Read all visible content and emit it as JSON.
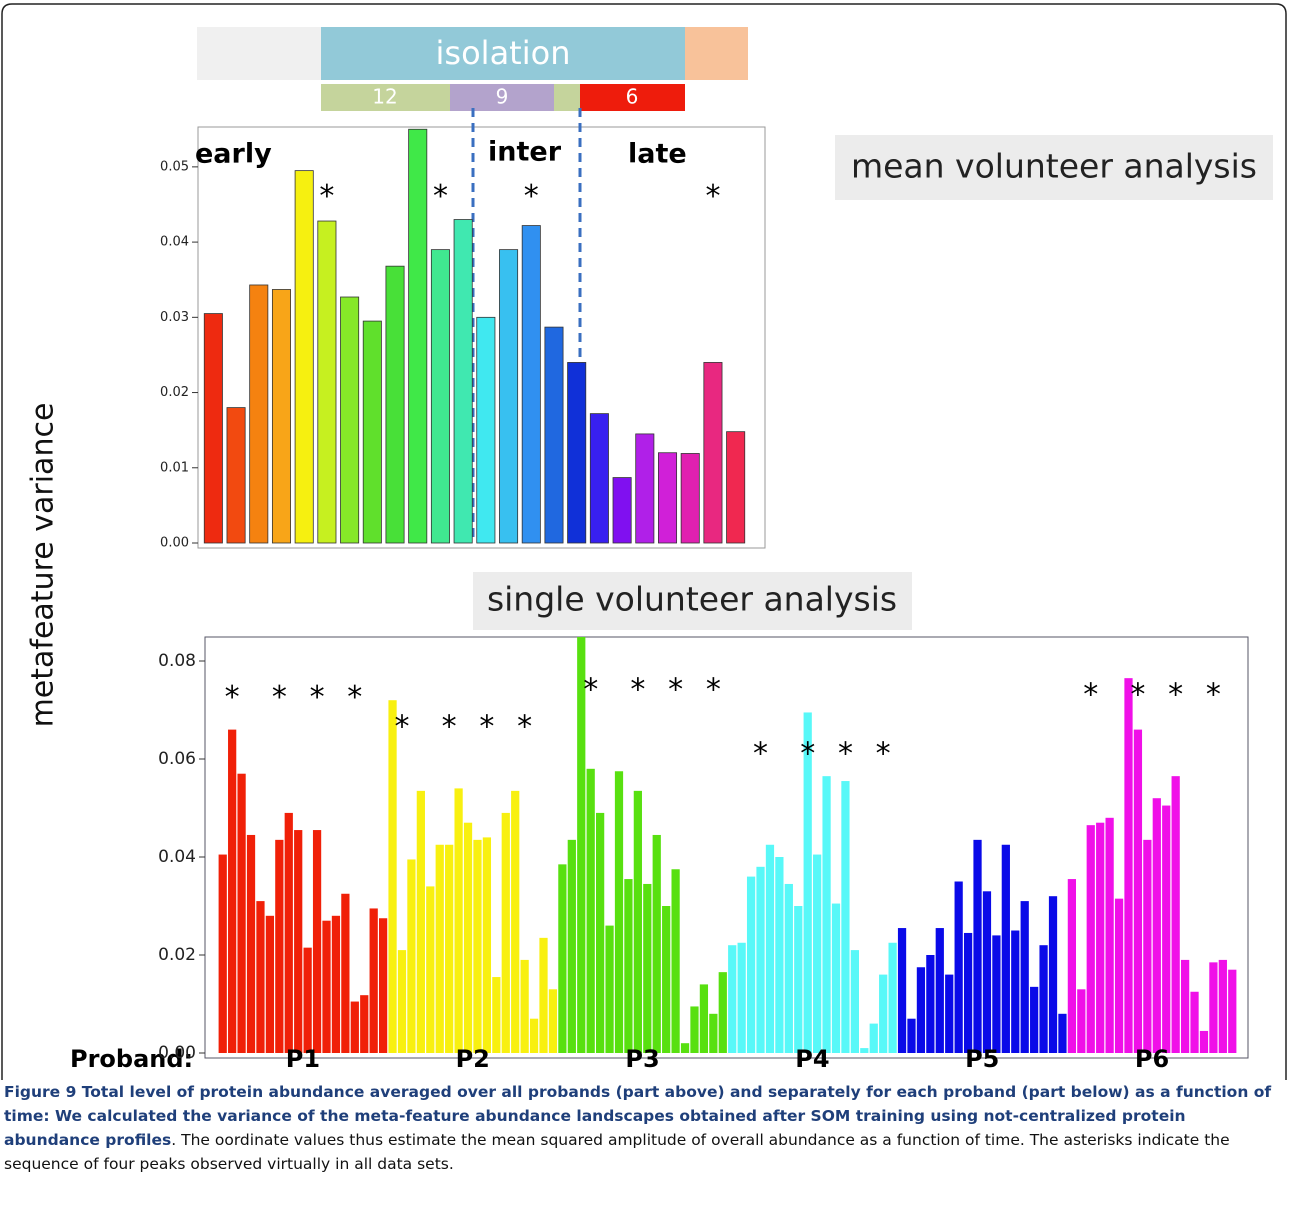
{
  "timeline": {
    "label": "isolation",
    "phases": [
      "12",
      "9",
      "6"
    ]
  },
  "shared_y_label": "metafeature variance",
  "chart_data": [
    {
      "type": "bar",
      "title": "mean volunteer analysis",
      "values": [
        0.0305,
        0.018,
        0.0343,
        0.0337,
        0.0495,
        0.0428,
        0.0327,
        0.0295,
        0.0368,
        0.055,
        0.039,
        0.043,
        0.03,
        0.039,
        0.0422,
        0.0287,
        0.024,
        0.0172,
        0.0087,
        0.0145,
        0.012,
        0.0119,
        0.024,
        0.0148
      ],
      "colors": [
        "#ee2a10",
        "#f24a10",
        "#f58210",
        "#f8a518",
        "#f6f010",
        "#c6f020",
        "#86e828",
        "#60e02c",
        "#48e038",
        "#40e848",
        "#40e890",
        "#40e8b0",
        "#40e8f0",
        "#38c0f0",
        "#3090f0",
        "#2068e0",
        "#1030d8",
        "#3820f0",
        "#8010f0",
        "#b020e8",
        "#d020d8",
        "#e020b0",
        "#e82880",
        "#f02850"
      ],
      "phases": [
        "early",
        "inter",
        "late"
      ],
      "annotations": [
        {
          "text": "*",
          "bar": 5,
          "y": 0.047
        },
        {
          "text": "*",
          "bar": 10,
          "y": 0.047
        },
        {
          "text": "*",
          "bar": 14,
          "y": 0.047
        },
        {
          "text": "*",
          "bar": 22,
          "y": 0.047
        }
      ],
      "ylim": [
        0,
        0.0553
      ],
      "yticks": [
        {
          "value": 0,
          "label": "0.00"
        },
        {
          "value": 0.01,
          "label": "0.01"
        },
        {
          "value": 0.02,
          "label": "0.02"
        },
        {
          "value": 0.03,
          "label": "0.03"
        },
        {
          "value": 0.04,
          "label": "0.04"
        },
        {
          "value": 0.05,
          "label": "0.05"
        }
      ]
    },
    {
      "type": "bar",
      "title": "single volunteer analysis",
      "x_label": "Proband:",
      "series": [
        {
          "name": "P1",
          "color": "#f02008",
          "values": [
            0.0405,
            0.066,
            0.057,
            0.0445,
            0.031,
            0.028,
            0.0435,
            0.049,
            0.0455,
            0.0215,
            0.0455,
            0.027,
            0.028,
            0.0325,
            0.0105,
            0.0118,
            0.0295,
            0.0275
          ]
        },
        {
          "name": "P2",
          "color": "#f8f010",
          "values": [
            0.072,
            0.021,
            0.0395,
            0.0535,
            0.034,
            0.0425,
            0.0425,
            0.054,
            0.047,
            0.0435,
            0.044,
            0.0155,
            0.049,
            0.0535,
            0.019,
            0.007,
            0.0235,
            0.013
          ]
        },
        {
          "name": "P3",
          "color": "#58e010",
          "values": [
            0.0385,
            0.0435,
            0.085,
            0.058,
            0.049,
            0.026,
            0.0575,
            0.0355,
            0.0535,
            0.0345,
            0.0445,
            0.03,
            0.0375,
            0.002,
            0.0095,
            0.014,
            0.008,
            0.0165
          ]
        },
        {
          "name": "P4",
          "color": "#58f8f8",
          "values": [
            0.022,
            0.0225,
            0.036,
            0.038,
            0.0425,
            0.04,
            0.0345,
            0.03,
            0.0695,
            0.0405,
            0.0565,
            0.0305,
            0.0555,
            0.021,
            0.001,
            0.006,
            0.016,
            0.0225
          ]
        },
        {
          "name": "P5",
          "color": "#0a0ae8",
          "values": [
            0.0255,
            0.007,
            0.0175,
            0.02,
            0.0255,
            0.016,
            0.035,
            0.0245,
            0.0435,
            0.033,
            0.024,
            0.0425,
            0.025,
            0.031,
            0.0135,
            0.022,
            0.032,
            0.008
          ]
        },
        {
          "name": "P6",
          "color": "#f010e8",
          "values": [
            0.0355,
            0.013,
            0.0465,
            0.047,
            0.048,
            0.0315,
            0.0765,
            0.066,
            0.0435,
            0.052,
            0.0505,
            0.0565,
            0.019,
            0.0125,
            0.0045,
            0.0185,
            0.019,
            0.017
          ]
        }
      ],
      "annotations": [
        {
          "text": "*",
          "bar": 1,
          "y": 0.074
        },
        {
          "text": "*",
          "bar": 6,
          "y": 0.074
        },
        {
          "text": "*",
          "bar": 10,
          "y": 0.074
        },
        {
          "text": "*",
          "bar": 14,
          "y": 0.074
        },
        {
          "text": "*",
          "bar": 19,
          "y": 0.068
        },
        {
          "text": "*",
          "bar": 24,
          "y": 0.068
        },
        {
          "text": "*",
          "bar": 28,
          "y": 0.068
        },
        {
          "text": "*",
          "bar": 32,
          "y": 0.068
        },
        {
          "text": "*",
          "bar": 39,
          "y": 0.0755
        },
        {
          "text": "*",
          "bar": 44,
          "y": 0.0755
        },
        {
          "text": "*",
          "bar": 48,
          "y": 0.0755
        },
        {
          "text": "*",
          "bar": 52,
          "y": 0.0755
        },
        {
          "text": "*",
          "bar": 57,
          "y": 0.0625
        },
        {
          "text": "*",
          "bar": 62,
          "y": 0.0625
        },
        {
          "text": "*",
          "bar": 66,
          "y": 0.0625
        },
        {
          "text": "*",
          "bar": 70,
          "y": 0.0625
        },
        {
          "text": "*",
          "bar": 92,
          "y": 0.0745
        },
        {
          "text": "*",
          "bar": 97,
          "y": 0.0745
        },
        {
          "text": "*",
          "bar": 101,
          "y": 0.0745
        },
        {
          "text": "*",
          "bar": 105,
          "y": 0.0745
        }
      ],
      "ylim": [
        0,
        0.0849
      ],
      "yticks": [
        {
          "value": 0,
          "label": "0.00"
        },
        {
          "value": 0.02,
          "label": "0.02"
        },
        {
          "value": 0.04,
          "label": "0.04"
        },
        {
          "value": 0.06,
          "label": "0.06"
        },
        {
          "value": 0.08,
          "label": "0.08"
        }
      ]
    }
  ],
  "caption": {
    "bold": "Figure 9 Total level of protein abundance averaged over all probands (part above) and separately for each proband (part below) as a function of time: We calculated the variance of the meta-feature abundance landscapes obtained after SOM training using not-centralized protein abundance profiles",
    "text": ". The oordinate values thus estimate the mean squared amplitude of overall abundance as a function of time. The asterisks indicate the sequence of four peaks observed virtually in all data sets."
  }
}
